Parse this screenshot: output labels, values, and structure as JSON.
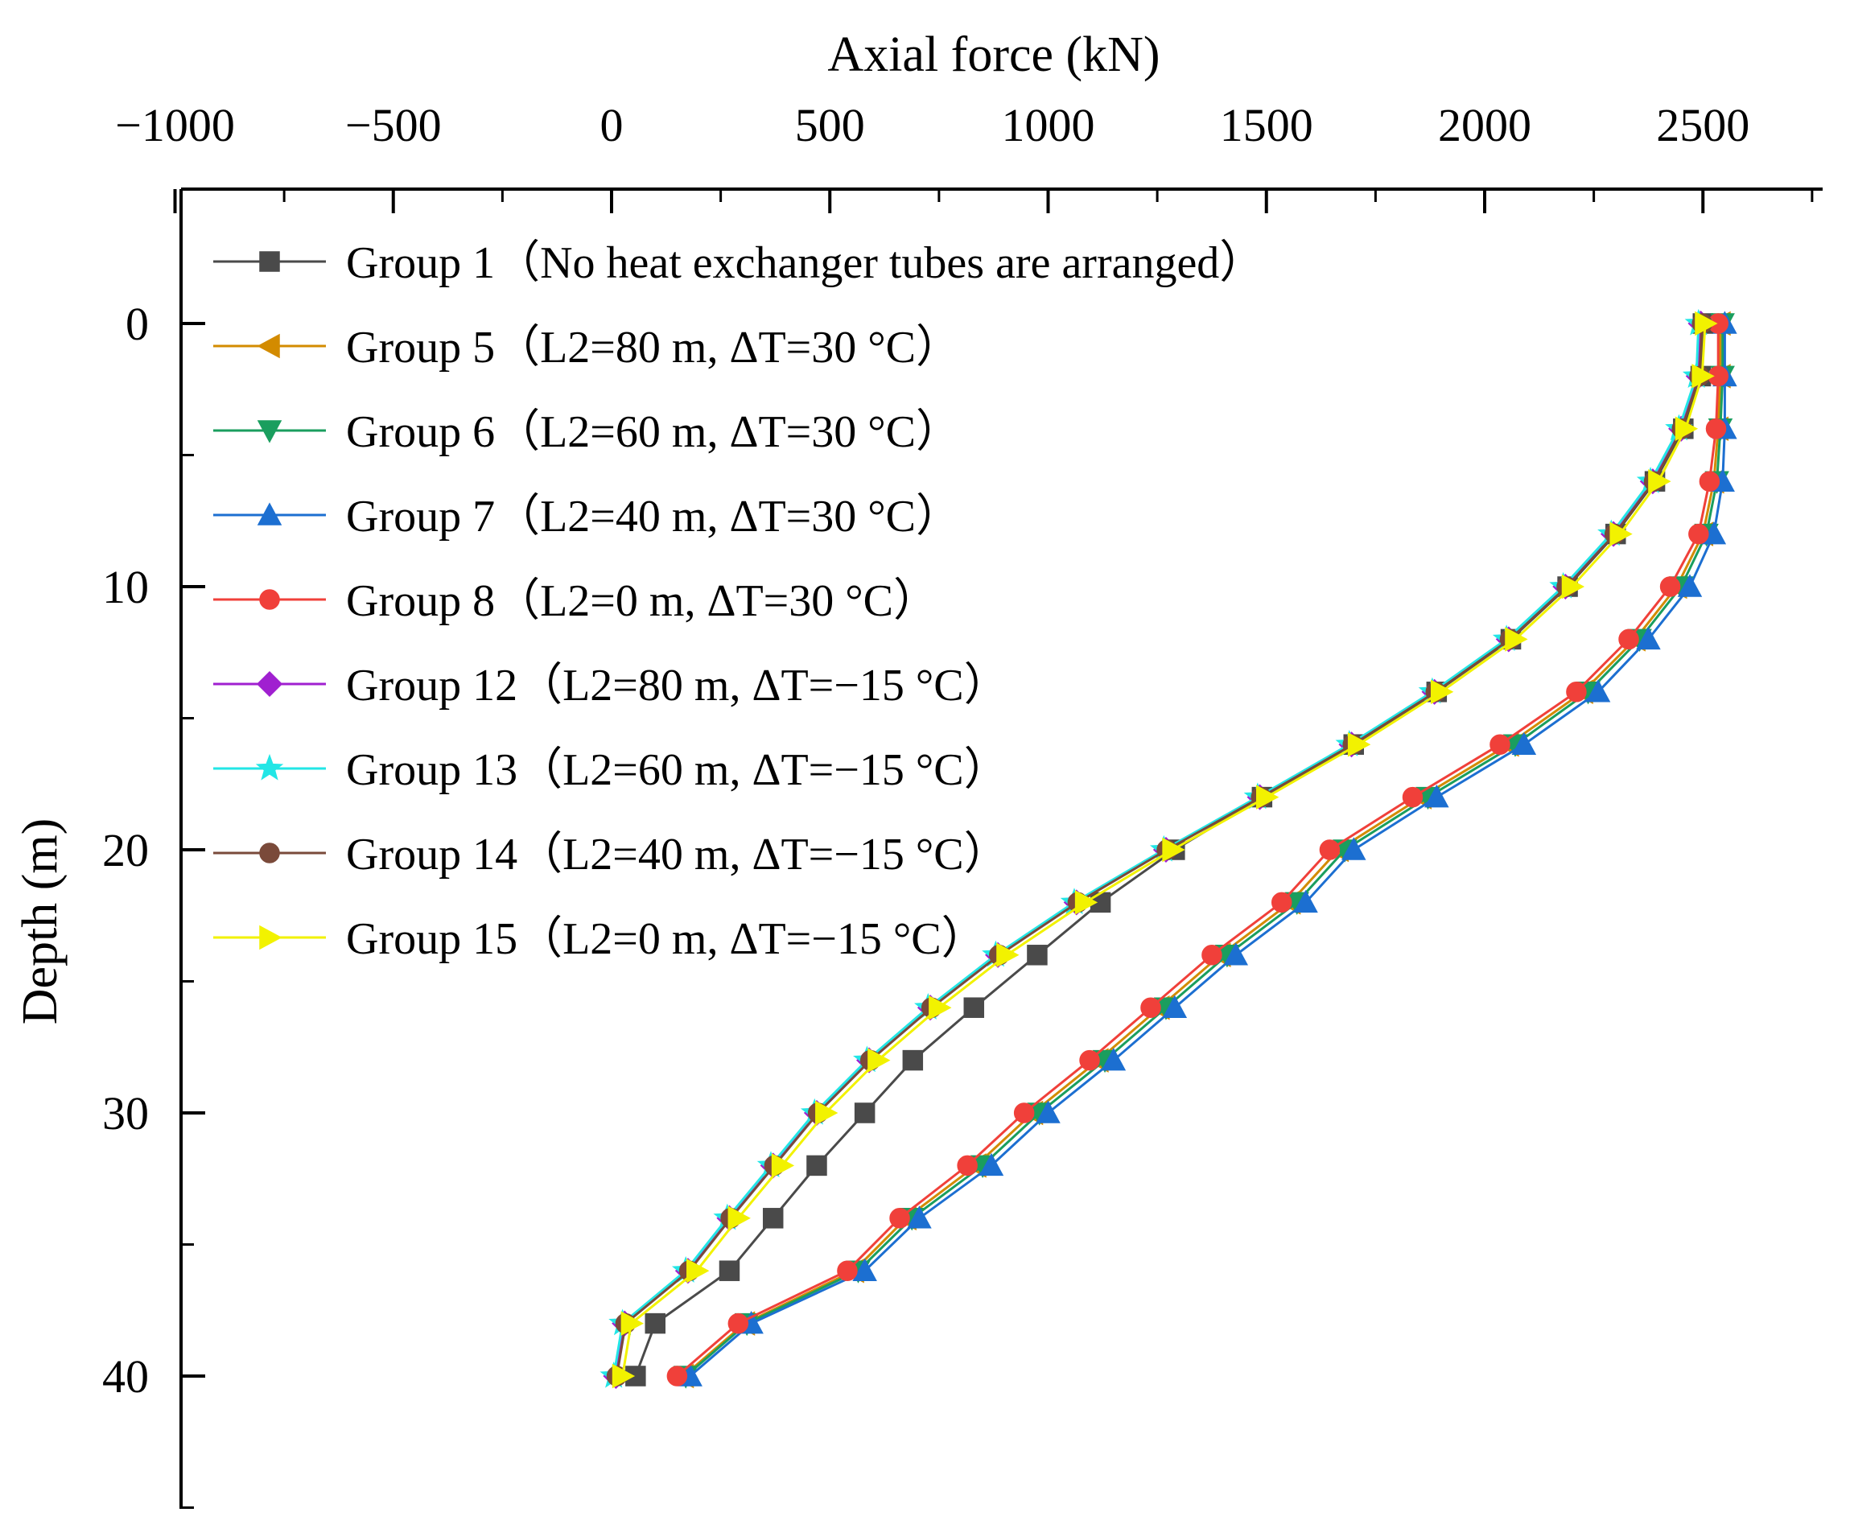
{
  "chart_data": {
    "type": "line",
    "title": "",
    "xlabel": "Axial force (kN)",
    "ylabel": "Depth (m)",
    "x_axis_position": "top",
    "y_axis_inverted": true,
    "xlim": [
      -1000,
      2800
    ],
    "ylim": [
      -5,
      45
    ],
    "xticks": [
      -1000,
      -500,
      0,
      500,
      1000,
      1500,
      2000,
      2500
    ],
    "xtick_labels": [
      "−1000",
      "−500",
      "0",
      "500",
      "1000",
      "1500",
      "2000",
      "2500"
    ],
    "yticks": [
      0,
      10,
      20,
      30,
      40
    ],
    "ytick_labels": [
      "0",
      "10",
      "20",
      "30",
      "40"
    ],
    "legend_position": "top-left",
    "depth": [
      0,
      2,
      4,
      6,
      8,
      10,
      12,
      14,
      16,
      18,
      20,
      22,
      24,
      26,
      28,
      30,
      32,
      34,
      36,
      38,
      40
    ],
    "series": [
      {
        "name": "Group 1",
        "label": "Group 1（No heat exchanger tubes are arranged）",
        "color": "#4a4a4a",
        "marker": "square",
        "values": [
          2500,
          2495,
          2455,
          2390,
          2300,
          2190,
          2060,
          1890,
          1700,
          1490,
          1290,
          1120,
          975,
          830,
          690,
          580,
          470,
          370,
          270,
          100,
          55
        ]
      },
      {
        "name": "Group 5",
        "label": "Group 5（L2=80 m, ΔT=30 °C）",
        "color": "#d38b00",
        "marker": "triangle-left",
        "values": [
          2540,
          2540,
          2535,
          2525,
          2500,
          2440,
          2345,
          2225,
          2055,
          1855,
          1665,
          1555,
          1395,
          1255,
          1115,
          965,
          835,
          675,
          555,
          305,
          165
        ]
      },
      {
        "name": "Group 6",
        "label": "Group 6（L2=60 m, ΔT=30 °C）",
        "color": "#1a9e5e",
        "marker": "triangle-down",
        "values": [
          2545,
          2545,
          2540,
          2532,
          2508,
          2450,
          2355,
          2237,
          2070,
          1870,
          1680,
          1570,
          1410,
          1270,
          1130,
          980,
          850,
          688,
          565,
          310,
          170
        ]
      },
      {
        "name": "Group 7",
        "label": "Group 7（L2=40 m, ΔT=30 °C）",
        "color": "#1c6fd1",
        "marker": "triangle-up",
        "values": [
          2550,
          2550,
          2550,
          2545,
          2525,
          2470,
          2375,
          2260,
          2090,
          1890,
          1700,
          1590,
          1430,
          1290,
          1150,
          1000,
          870,
          705,
          580,
          320,
          180
        ]
      },
      {
        "name": "Group 8",
        "label": "Group 8（L2=0 m, ΔT=30 °C）",
        "color": "#f0403a",
        "marker": "circle",
        "values": [
          2535,
          2535,
          2530,
          2515,
          2490,
          2425,
          2330,
          2210,
          2035,
          1835,
          1645,
          1535,
          1375,
          1235,
          1095,
          945,
          815,
          660,
          540,
          290,
          150
        ]
      },
      {
        "name": "Group 12",
        "label": "Group 12（L2=80 m, ΔT=−15 °C）",
        "color": "#a020d0",
        "marker": "diamond",
        "values": [
          2495,
          2490,
          2450,
          2385,
          2295,
          2185,
          2055,
          1885,
          1695,
          1485,
          1270,
          1065,
          885,
          730,
          590,
          470,
          370,
          270,
          175,
          30,
          10
        ]
      },
      {
        "name": "Group 13",
        "label": "Group 13（L2=60 m, ΔT=−15 °C）",
        "color": "#22e6e6",
        "marker": "star",
        "values": [
          2490,
          2485,
          2445,
          2380,
          2290,
          2180,
          2050,
          1880,
          1690,
          1480,
          1265,
          1060,
          880,
          725,
          585,
          465,
          365,
          265,
          170,
          25,
          5
        ]
      },
      {
        "name": "Group 14",
        "label": "Group 14（L2=40 m, ΔT=−15 °C）",
        "color": "#7a4a3a",
        "marker": "circle",
        "values": [
          2498,
          2492,
          2452,
          2388,
          2298,
          2188,
          2058,
          1888,
          1698,
          1488,
          1272,
          1068,
          888,
          733,
          593,
          473,
          373,
          273,
          178,
          32,
          12
        ]
      },
      {
        "name": "Group 15",
        "label": "Group 15（L2=0 m, ΔT=−15 °C）",
        "color": "#f2f200",
        "marker": "triangle-right",
        "values": [
          2505,
          2498,
          2460,
          2398,
          2310,
          2200,
          2070,
          1900,
          1710,
          1500,
          1285,
          1085,
          905,
          750,
          610,
          490,
          390,
          290,
          195,
          45,
          25
        ]
      }
    ]
  }
}
